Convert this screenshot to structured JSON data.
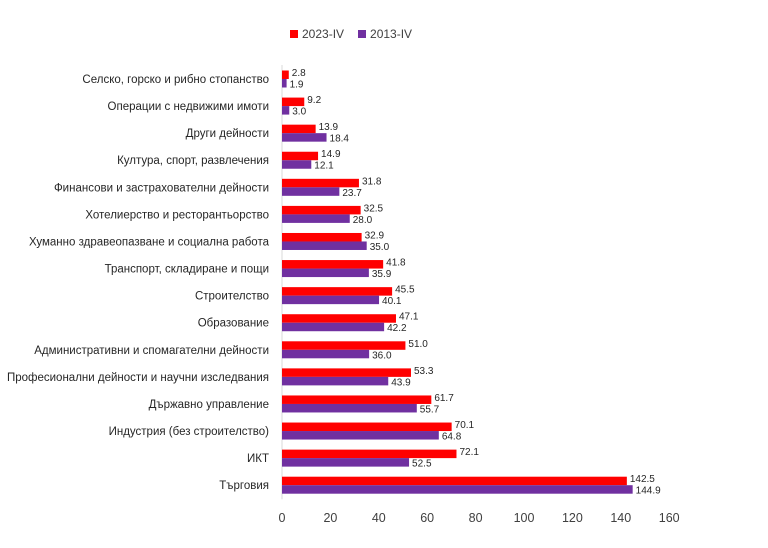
{
  "chart_data": {
    "type": "bar",
    "orientation": "horizontal",
    "title": "",
    "xlabel": "",
    "ylabel": "",
    "xlim": [
      0,
      160
    ],
    "xticks": [
      0,
      20,
      40,
      60,
      80,
      100,
      120,
      140,
      160
    ],
    "grid": false,
    "legend_position": "top",
    "categories": [
      "Селско, горско и рибно стопанство",
      "Операции с недвижими имоти",
      "Други дейности",
      "Култура, спорт, развлечения",
      "Финансови и застрахователни дейности",
      "Хотелиерство и ресторантьорство",
      "Хуманно здравеопазване и социална работа",
      "Транспорт, складиране и пощи",
      "Строителство",
      "Образование",
      "Административни и спомагателни дейности",
      "Професионални дейности и научни изследвания",
      "Държавно управление",
      "Индустрия (без строителство)",
      "ИКТ",
      "Търговия"
    ],
    "series": [
      {
        "name": "2023-IV",
        "color": "#ff0000",
        "values": [
          2.8,
          9.2,
          13.9,
          14.9,
          31.8,
          32.5,
          32.9,
          41.8,
          45.5,
          47.1,
          51.0,
          53.3,
          61.7,
          70.1,
          72.1,
          142.5
        ],
        "labels": [
          "2.8",
          "9.2",
          "13.9",
          "14.9",
          "31.8",
          "32.5",
          "32.9",
          "41.8",
          "45.5",
          "47.1",
          "51.0",
          "53.3",
          "61.7",
          "70.1",
          "72.1",
          "142.5"
        ]
      },
      {
        "name": "2013-IV",
        "color": "#7030a0",
        "values": [
          1.9,
          3.0,
          18.4,
          12.1,
          23.7,
          28.0,
          35.0,
          35.9,
          40.1,
          42.2,
          36.0,
          43.9,
          55.7,
          64.8,
          52.5,
          144.9
        ],
        "labels": [
          "1.9",
          "3.0",
          "18.4",
          "12.1",
          "23.7",
          "28.0",
          "35.0",
          "35.9",
          "40.1",
          "42.2",
          "36.0",
          "43.9",
          "55.7",
          "64.8",
          "52.5",
          "144.9"
        ]
      }
    ]
  }
}
